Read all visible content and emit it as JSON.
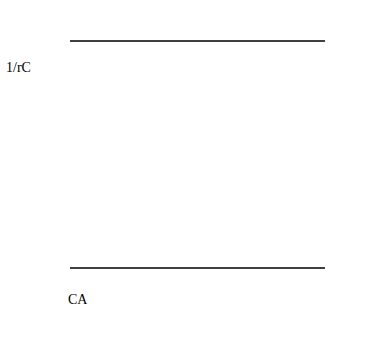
{
  "chart_data": {
    "type": "line",
    "y_label": "1/rC",
    "x_label": "CA",
    "x": [
      0,
      1
    ],
    "series": [
      {
        "name": "1/rC",
        "color": "#000000",
        "values": [
          0.88,
          0.88
        ]
      }
    ],
    "xlim": [
      0,
      1
    ],
    "ylim": [
      0,
      1
    ],
    "tick_labels": false,
    "grid": false
  }
}
